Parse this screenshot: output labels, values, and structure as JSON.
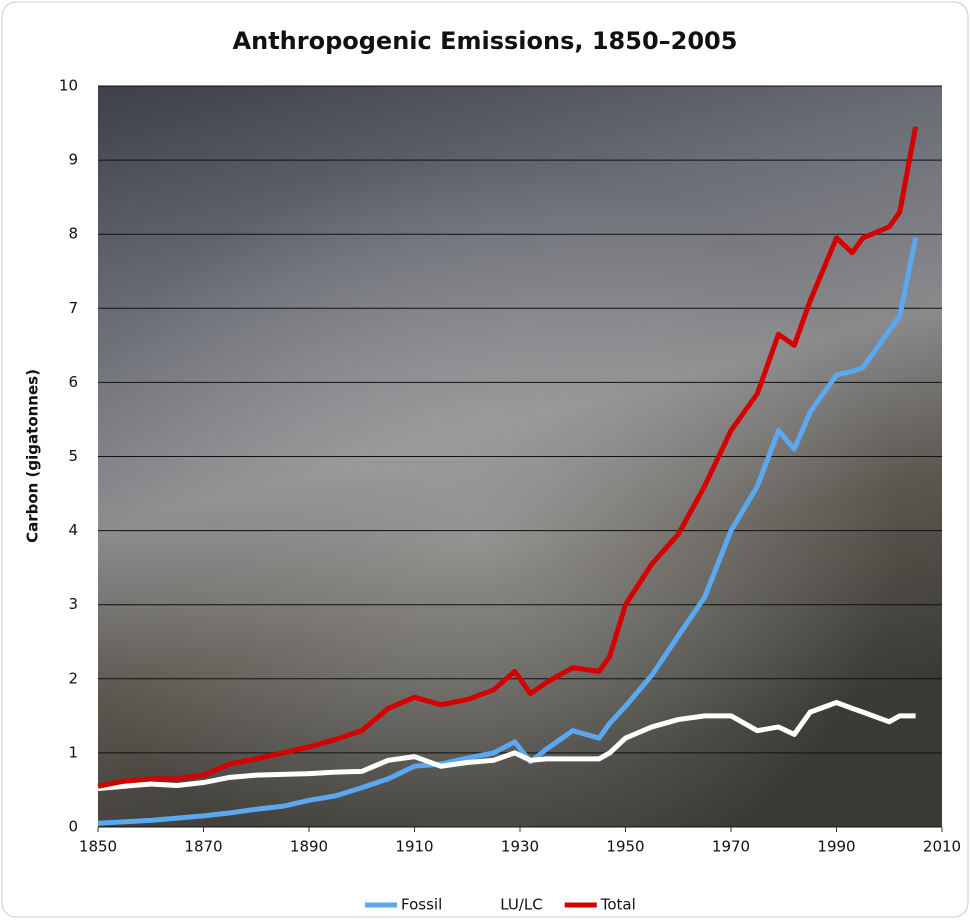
{
  "chart_data": {
    "type": "line",
    "title": "Anthropogenic Emissions, 1850–2005",
    "y_label": "Carbon (gigatonnes)",
    "x": [
      1850,
      1855,
      1860,
      1865,
      1870,
      1875,
      1880,
      1885,
      1890,
      1895,
      1900,
      1905,
      1910,
      1915,
      1920,
      1925,
      1929,
      1932,
      1935,
      1940,
      1945,
      1947,
      1950,
      1955,
      1960,
      1965,
      1970,
      1975,
      1979,
      1982,
      1985,
      1990,
      1993,
      1995,
      2000,
      2002,
      2005
    ],
    "series": [
      {
        "name": "Fossil",
        "color": "#5aa8f0",
        "values": [
          0.05,
          0.07,
          0.09,
          0.12,
          0.15,
          0.19,
          0.24,
          0.28,
          0.36,
          0.42,
          0.53,
          0.65,
          0.82,
          0.85,
          0.93,
          1.0,
          1.15,
          0.88,
          1.05,
          1.3,
          1.2,
          1.4,
          1.63,
          2.05,
          2.58,
          3.1,
          4.0,
          4.6,
          5.35,
          5.1,
          5.6,
          6.1,
          6.15,
          6.2,
          6.7,
          6.9,
          7.95
        ]
      },
      {
        "name": "LU/LC",
        "color": "#ffffff",
        "values": [
          0.52,
          0.55,
          0.58,
          0.56,
          0.6,
          0.67,
          0.7,
          0.71,
          0.72,
          0.74,
          0.75,
          0.9,
          0.95,
          0.82,
          0.87,
          0.9,
          1.0,
          0.9,
          0.92,
          0.92,
          0.92,
          1.0,
          1.2,
          1.35,
          1.45,
          1.5,
          1.5,
          1.3,
          1.35,
          1.25,
          1.55,
          1.68,
          1.6,
          1.55,
          1.42,
          1.5,
          1.5
        ]
      },
      {
        "name": "Total",
        "color": "#d40000",
        "values": [
          0.55,
          0.62,
          0.65,
          0.65,
          0.7,
          0.85,
          0.92,
          1.0,
          1.08,
          1.18,
          1.3,
          1.6,
          1.75,
          1.65,
          1.72,
          1.85,
          2.1,
          1.8,
          1.95,
          2.15,
          2.1,
          2.3,
          3.0,
          3.55,
          3.95,
          4.6,
          5.35,
          5.85,
          6.65,
          6.5,
          7.1,
          7.95,
          7.75,
          7.95,
          8.1,
          8.3,
          9.45
        ]
      }
    ],
    "xlim": [
      1850,
      2010
    ],
    "xticks": [
      1850,
      1870,
      1890,
      1910,
      1930,
      1950,
      1970,
      1990,
      2010
    ],
    "ylim": [
      0,
      10
    ],
    "yticks": [
      0,
      1,
      2,
      3,
      4,
      5,
      6,
      7,
      8,
      9,
      10
    ],
    "grid": true
  }
}
